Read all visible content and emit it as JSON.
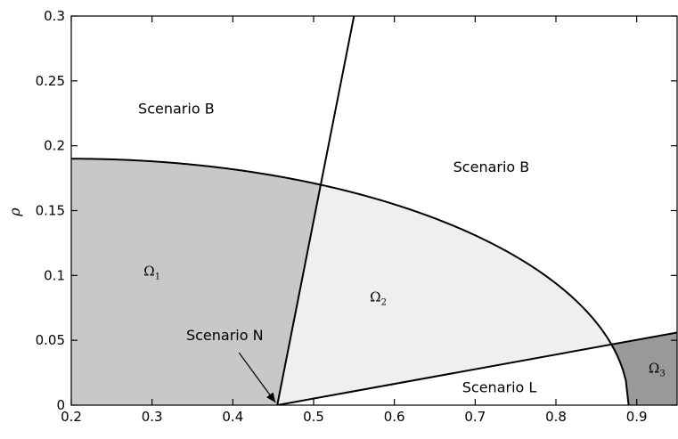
{
  "chart_data": {
    "type": "area",
    "xlabel": "",
    "ylabel": "ρ",
    "xlim": [
      0.2,
      0.95
    ],
    "ylim": [
      0,
      0.3
    ],
    "xticks": [
      0.2,
      0.3,
      0.4,
      0.5,
      0.6,
      0.7,
      0.8,
      0.9
    ],
    "xtick_labels": [
      "0.2",
      "0.3",
      "0.4",
      "0.5",
      "0.6",
      "0.7",
      "0.8",
      "0.9"
    ],
    "yticks": [
      0,
      0.05,
      0.1,
      0.15,
      0.2,
      0.25,
      0.3
    ],
    "ytick_labels": [
      "0",
      "0.05",
      "0.1",
      "0.15",
      "0.2",
      "0.25",
      "0.3"
    ],
    "grid": false,
    "curves": {
      "arc": {
        "x_start": 0.2,
        "y_start": 0.19,
        "x_end": 0.89,
        "y_end": 0.0
      },
      "steep_line": {
        "points": [
          [
            0.455,
            0.0
          ],
          [
            0.55,
            0.3
          ]
        ]
      },
      "shallow_line": {
        "points": [
          [
            0.455,
            0.0
          ],
          [
            0.95,
            0.056
          ]
        ]
      }
    },
    "regions": [
      {
        "name": "Ω1",
        "label": "Ω",
        "sub": "1",
        "fill": "#c8c8c8",
        "label_at": [
          0.3,
          0.1
        ]
      },
      {
        "name": "Ω2",
        "label": "Ω",
        "sub": "2",
        "fill": "#efefef",
        "label_at": [
          0.58,
          0.08
        ]
      },
      {
        "name": "Ω3",
        "label": "Ω",
        "sub": "3",
        "fill": "#999999",
        "label_at": [
          0.925,
          0.025
        ]
      }
    ],
    "annotations": [
      {
        "text": "Scenario B",
        "at": [
          0.33,
          0.225
        ]
      },
      {
        "text": "Scenario B",
        "at": [
          0.72,
          0.18
        ]
      },
      {
        "text": "Scenario N",
        "at": [
          0.39,
          0.05
        ],
        "arrow_to": [
          0.455,
          0.0
        ]
      },
      {
        "text": "Scenario L",
        "at": [
          0.73,
          0.01
        ]
      }
    ]
  }
}
